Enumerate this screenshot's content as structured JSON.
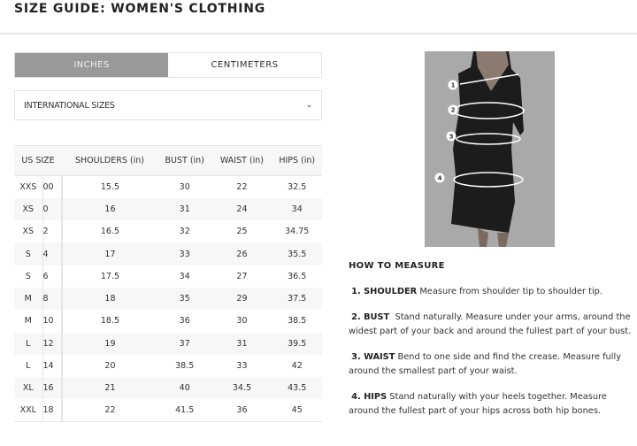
{
  "title": "SIZE GUIDE: WOMEN'S CLOTHING",
  "tabs": [
    {
      "label": "INCHES",
      "active": true
    },
    {
      "label": "CENTIMETERS",
      "active": false
    }
  ],
  "dropdown": {
    "value": "INTERNATIONAL SIZES",
    "icon": "chevron-down-icon"
  },
  "table": {
    "headers": [
      "US SIZE",
      "SHOULDERS (in)",
      "BUST (in)",
      "WAIST (in)",
      "HIPS (in)"
    ],
    "rows": [
      [
        "XXS",
        "00",
        "15.5",
        "30",
        "22",
        "32.5"
      ],
      [
        "XS",
        "0",
        "16",
        "31",
        "24",
        "34"
      ],
      [
        "XS",
        "2",
        "16.5",
        "32",
        "25",
        "34.75"
      ],
      [
        "S",
        "4",
        "17",
        "33",
        "26",
        "35.5"
      ],
      [
        "S",
        "6",
        "17.5",
        "34",
        "27",
        "36.5"
      ],
      [
        "M",
        "8",
        "18",
        "35",
        "29",
        "37.5"
      ],
      [
        "M",
        "10",
        "18.5",
        "36",
        "30",
        "38.5"
      ],
      [
        "L",
        "12",
        "19",
        "37",
        "31",
        "39.5"
      ],
      [
        "L",
        "14",
        "20",
        "38.5",
        "33",
        "42"
      ],
      [
        "XL",
        "16",
        "21",
        "40",
        "34.5",
        "43.5"
      ],
      [
        "XXL",
        "18",
        "22",
        "41.5",
        "36",
        "45"
      ]
    ]
  },
  "figure": {
    "markers": [
      "1",
      "2",
      "3",
      "4"
    ]
  },
  "howto": {
    "heading": "HOW TO MEASURE",
    "items": [
      {
        "label": "1. SHOULDER",
        "text": "Measure from shoulder tip to shoulder tip."
      },
      {
        "label": "2. BUST",
        "text": "Stand naturally. Measure under your arms, around the widest part of your back and around the fullest part of your bust."
      },
      {
        "label": "3. WAIST",
        "text": "Bend to one side and find the crease. Measure fully around the smallest part of your waist."
      },
      {
        "label": "4. HIPS",
        "text": "Stand naturally with your heels together. Measure around the fullest part of your hips across both hip bones."
      }
    ]
  }
}
